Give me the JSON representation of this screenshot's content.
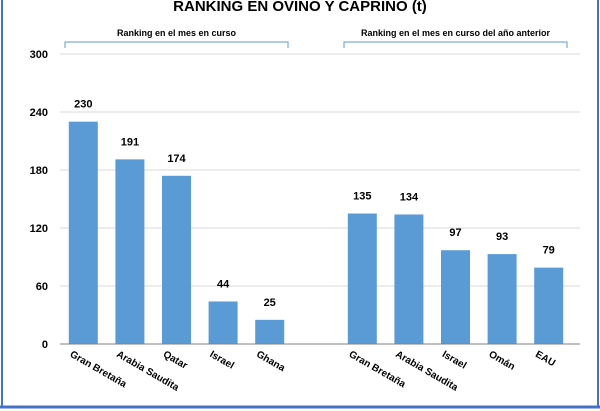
{
  "chart_data": {
    "type": "bar",
    "title": "RANKING EN OVINO Y CAPRINO (t)",
    "xlabel": "",
    "ylabel": "",
    "ylim": [
      0,
      300
    ],
    "yticks": [
      0,
      60,
      120,
      180,
      240,
      300
    ],
    "grid": true,
    "legend": "none",
    "bar_color": "#5B9BD5",
    "border_color": "#4472C4",
    "groups": [
      {
        "label": "Ranking en el mes en curso",
        "categories": [
          "Gran Bretaña",
          "Arabia Saudita",
          "Qatar",
          "Israel",
          "Ghana"
        ],
        "values": [
          230,
          191,
          174,
          44,
          25
        ]
      },
      {
        "label": "Ranking en el mes en curso del año anterior",
        "categories": [
          "Gran Bretaña",
          "Arabia Saudita",
          "Israel",
          "Omán",
          "EAU"
        ],
        "values": [
          135,
          134,
          97,
          93,
          79
        ]
      }
    ]
  }
}
